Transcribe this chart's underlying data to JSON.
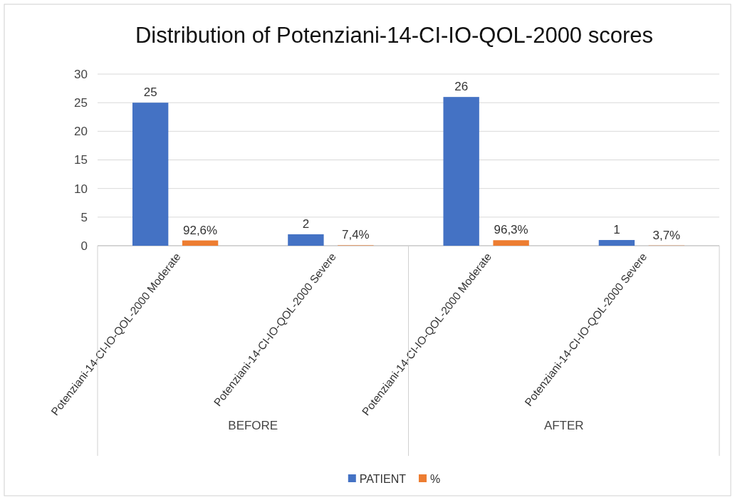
{
  "chart_data": {
    "type": "bar",
    "title": "Distribution of Potenziani-14-CI-IO-QOL-2000 scores",
    "categories": [
      "Potenziani-14-CI-IO-QOL-2000 Moderate",
      "Potenziani-14-CI-IO-QOL-2000 Severe",
      "Potenziani-14-CI-IO-QOL-2000 Moderate",
      "Potenziani-14-CI-IO-QOL-2000 Severe"
    ],
    "series": [
      {
        "name": "PATIENT",
        "color": "#4472c4",
        "values": [
          25,
          2,
          26,
          1
        ],
        "value_labels": [
          "25",
          "2",
          "26",
          "1"
        ]
      },
      {
        "name": "%",
        "color": "#ed7d31",
        "values": [
          0.926,
          0.074,
          0.963,
          0.037
        ],
        "value_labels": [
          "92,6%",
          "7,4%",
          "96,3%",
          "3,7%"
        ]
      }
    ],
    "annotations": [
      "BEFORE",
      "AFTER"
    ],
    "ylim": [
      0,
      30
    ],
    "yticks": [
      0,
      5,
      10,
      15,
      20,
      25,
      30
    ],
    "grid": "y",
    "legend": "bottom"
  }
}
